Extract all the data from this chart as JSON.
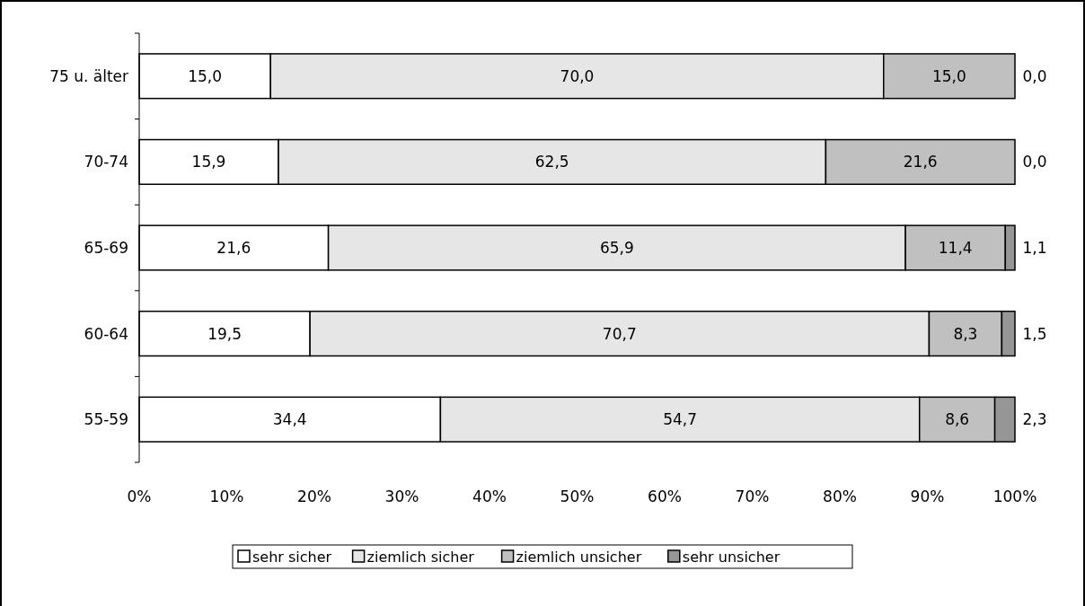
{
  "chart_data": {
    "type": "bar",
    "orientation": "horizontal",
    "stacked": true,
    "categories": [
      "75 u. älter",
      "70-74",
      "65-69",
      "60-64",
      "55-59"
    ],
    "series": [
      {
        "name": "sehr sicher",
        "color": "#ffffff",
        "values": [
          15.0,
          15.9,
          21.6,
          19.5,
          34.4
        ],
        "value_labels": [
          "15,0",
          "15,9",
          "21,6",
          "19,5",
          "34,4"
        ]
      },
      {
        "name": "ziemlich sicher",
        "color": "#e6e6e6",
        "values": [
          70.0,
          62.5,
          65.9,
          70.7,
          54.7
        ],
        "value_labels": [
          "70,0",
          "62,5",
          "65,9",
          "70,7",
          "54,7"
        ]
      },
      {
        "name": "ziemlich unsicher",
        "color": "#c0c0c0",
        "values": [
          15.0,
          21.6,
          11.4,
          8.3,
          8.6
        ],
        "value_labels": [
          "15,0",
          "21,6",
          "11,4",
          "8,3",
          "8,6"
        ]
      },
      {
        "name": "sehr unsicher",
        "color": "#969696",
        "values": [
          0.0,
          0.0,
          1.1,
          1.5,
          2.3
        ],
        "value_labels": [
          "0,0",
          "0,0",
          "1,1",
          "1,5",
          "2,3"
        ]
      }
    ],
    "xlim": [
      0,
      100
    ],
    "xticks": [
      {
        "value": 0,
        "label": "0%"
      },
      {
        "value": 10,
        "label": "10%"
      },
      {
        "value": 20,
        "label": "20%"
      },
      {
        "value": 30,
        "label": "30%"
      },
      {
        "value": 40,
        "label": "40%"
      },
      {
        "value": 50,
        "label": "50%"
      },
      {
        "value": 60,
        "label": "60%"
      },
      {
        "value": 70,
        "label": "70%"
      },
      {
        "value": 80,
        "label": "80%"
      },
      {
        "value": 90,
        "label": "90%"
      },
      {
        "value": 100,
        "label": "100%"
      }
    ],
    "grid": false,
    "legend": "bottom"
  }
}
